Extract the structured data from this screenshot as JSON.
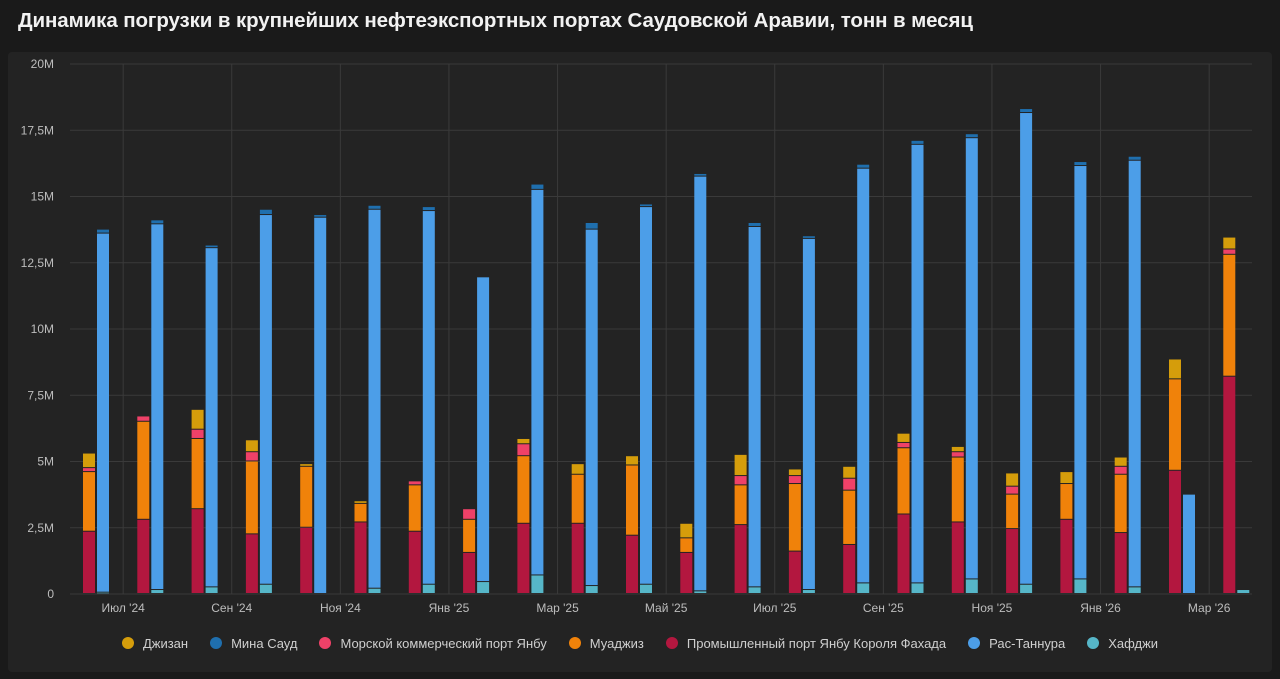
{
  "title": "Динамика погрузки в крупнейших нефтеэкспортных портах Саудовской Аравии, тонн в месяц",
  "chart_data": {
    "type": "bar",
    "stacked": true,
    "x_tick_labels": [
      "Июл '24",
      "Сен '24",
      "Ноя '24",
      "Янв '25",
      "Мар '25",
      "Май '25",
      "Июл '25",
      "Сен '25",
      "Ноя '25",
      "Янв '26",
      "Мар '26"
    ],
    "y_ticks": [
      0,
      2500000,
      5000000,
      7500000,
      10000000,
      12500000,
      15000000,
      17500000,
      20000000
    ],
    "y_tick_labels": [
      "0",
      "2,5M",
      "5M",
      "7,5M",
      "10M",
      "12,5M",
      "15M",
      "17,5M",
      "20M"
    ],
    "ylim": [
      0,
      20000000
    ],
    "grid": true,
    "legend_position": "bottom",
    "months": [
      "2024-07",
      "2024-08",
      "2024-09",
      "2024-10",
      "2024-11",
      "2024-12",
      "2025-01",
      "2025-02",
      "2025-03",
      "2025-04",
      "2025-05",
      "2025-06",
      "2025-07",
      "2025-08",
      "2025-09",
      "2025-10",
      "2025-11",
      "2025-12",
      "2026-01",
      "2026-02",
      "2026-03",
      "2026-04"
    ],
    "groups": [
      {
        "series": [
          "Промышленный порт Янбу Короля Фахада",
          "Муаджиз",
          "Морской коммерческий порт Янбу",
          "Джизан"
        ],
        "values": [
          [
            2350000,
            2250000,
            150000,
            550000
          ],
          [
            2800000,
            3700000,
            200000,
            0
          ],
          [
            3200000,
            2650000,
            350000,
            750000
          ],
          [
            2250000,
            2750000,
            350000,
            450000
          ],
          [
            2500000,
            2300000,
            0,
            100000
          ],
          [
            2700000,
            700000,
            0,
            100000
          ],
          [
            2350000,
            1750000,
            150000,
            0
          ],
          [
            1550000,
            1250000,
            400000,
            0
          ],
          [
            2650000,
            2550000,
            450000,
            200000
          ],
          [
            2650000,
            1850000,
            0,
            400000
          ],
          [
            2200000,
            2650000,
            0,
            350000
          ],
          [
            1550000,
            550000,
            0,
            550000
          ],
          [
            2600000,
            1500000,
            350000,
            800000
          ],
          [
            1600000,
            2550000,
            300000,
            250000
          ],
          [
            1850000,
            2050000,
            450000,
            450000
          ],
          [
            3000000,
            2500000,
            200000,
            350000
          ],
          [
            2700000,
            2450000,
            200000,
            200000
          ],
          [
            2450000,
            1300000,
            300000,
            500000
          ],
          [
            2800000,
            1350000,
            0,
            450000
          ],
          [
            2300000,
            2200000,
            300000,
            350000
          ],
          [
            4650000,
            3450000,
            0,
            750000
          ],
          [
            8200000,
            4600000,
            200000,
            450000
          ]
        ]
      },
      {
        "series": [
          "Хафджи",
          "Рас-Таннура",
          "Мина Сауд"
        ],
        "values": [
          [
            50000,
            13550000,
            150000
          ],
          [
            150000,
            13800000,
            150000
          ],
          [
            250000,
            12800000,
            100000
          ],
          [
            350000,
            13950000,
            200000
          ],
          [
            0,
            14200000,
            100000
          ],
          [
            200000,
            14300000,
            150000
          ],
          [
            350000,
            14100000,
            150000
          ],
          [
            450000,
            11500000,
            0
          ],
          [
            700000,
            14550000,
            200000
          ],
          [
            300000,
            13450000,
            250000
          ],
          [
            350000,
            14250000,
            100000
          ],
          [
            100000,
            15650000,
            100000
          ],
          [
            250000,
            13600000,
            150000
          ],
          [
            150000,
            13250000,
            100000
          ],
          [
            400000,
            15650000,
            150000
          ],
          [
            400000,
            16550000,
            150000
          ],
          [
            550000,
            16650000,
            150000
          ],
          [
            350000,
            17800000,
            150000
          ],
          [
            550000,
            15600000,
            150000
          ],
          [
            250000,
            16100000,
            150000
          ],
          [
            0,
            3750000,
            0
          ],
          [
            150000,
            0,
            0
          ]
        ]
      }
    ],
    "legend": [
      {
        "name": "Джизан",
        "color": "#d59d0b"
      },
      {
        "name": "Мина Сауд",
        "color": "#1f6fae"
      },
      {
        "name": "Морской коммерческий порт Янбу",
        "color": "#ef4168"
      },
      {
        "name": "Муаджиз",
        "color": "#f0820a"
      },
      {
        "name": "Промышленный порт Янбу Короля Фахада",
        "color": "#b3173f"
      },
      {
        "name": "Рас-Таннура",
        "color": "#4c9ee8"
      },
      {
        "name": "Хафджи",
        "color": "#56b6c8"
      }
    ],
    "colors": {
      "Джизан": "#d59d0b",
      "Мина Сауд": "#1f6fae",
      "Морской коммерческий порт Янбу": "#ef4168",
      "Муаджиз": "#f0820a",
      "Промышленный порт Янбу Короля Фахада": "#b3173f",
      "Рас-Таннура": "#4c9ee8",
      "Хафджи": "#56b6c8"
    }
  }
}
